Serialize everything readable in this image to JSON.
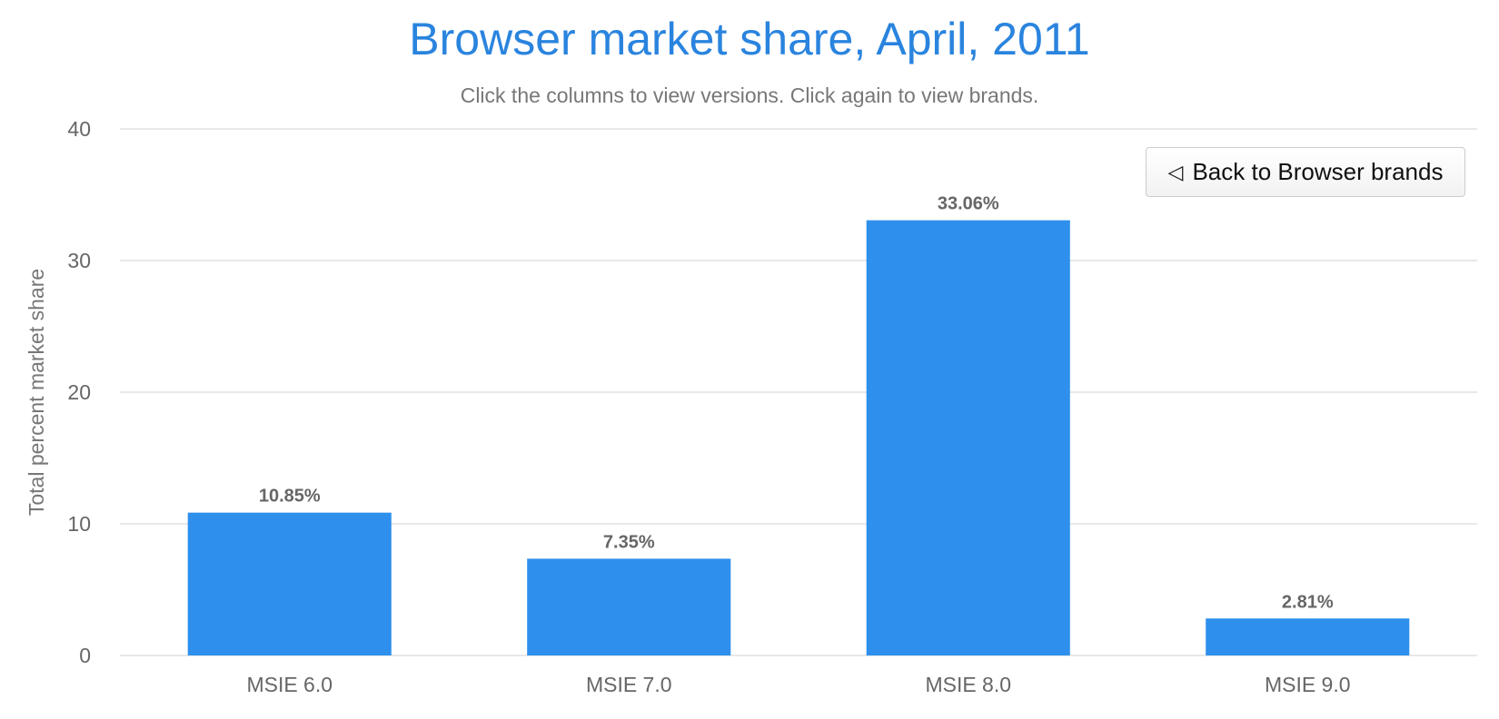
{
  "chart_data": {
    "type": "bar",
    "title": "Browser market share, April, 2011",
    "subtitle": "Click the columns to view versions. Click again to view brands.",
    "ylabel": "Total percent market share",
    "xlabel": "",
    "categories": [
      "MSIE 6.0",
      "MSIE 7.0",
      "MSIE 8.0",
      "MSIE 9.0"
    ],
    "values": [
      10.85,
      7.35,
      33.06,
      2.81
    ],
    "data_labels": [
      "10.85%",
      "7.35%",
      "33.06%",
      "2.81%"
    ],
    "ylim": [
      0,
      40
    ],
    "yticks": [
      0,
      10,
      20,
      30,
      40
    ],
    "grid": true,
    "bar_color": "#2e90ec",
    "title_color": "#2a84de"
  },
  "controls": {
    "back_icon": "triangle-left-icon",
    "back_glyph": "◁",
    "back_label": "Back to Browser brands"
  }
}
